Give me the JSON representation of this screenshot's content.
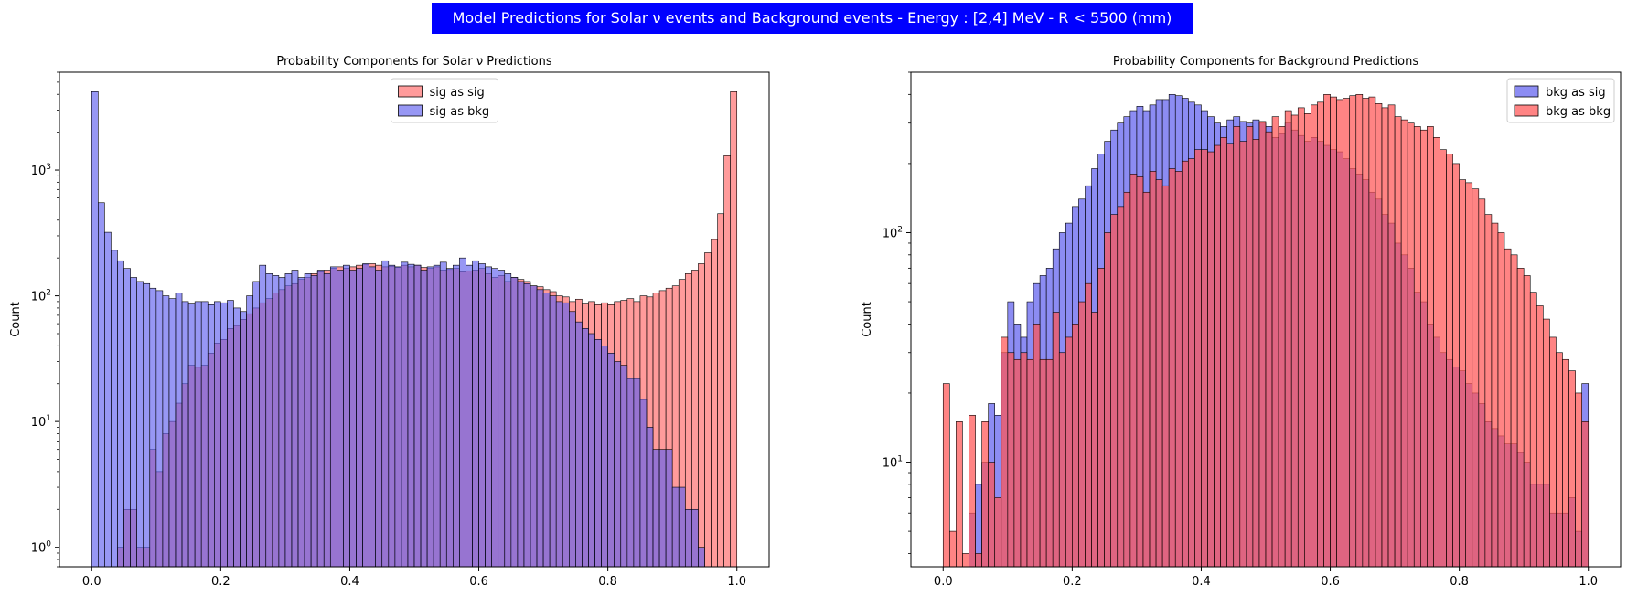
{
  "banner": {
    "title": "Model Predictions for Solar ν events and Background events - Energy : [2,4] MeV - R < 5500 (mm)",
    "background": "#0000ff",
    "color": "#ffffff"
  },
  "chart_data": [
    {
      "type": "histogram",
      "title": "Probability Components for Solar ν Predictions",
      "xlabel": "",
      "ylabel": "Count",
      "yscale": "log",
      "xlim": [
        -0.05,
        1.05
      ],
      "ylim": [
        0.7,
        6000
      ],
      "xticks": [
        "0.0",
        "0.2",
        "0.4",
        "0.6",
        "0.8",
        "1.0"
      ],
      "yticks": [
        {
          "value": 1,
          "label": "10^0"
        },
        {
          "value": 10,
          "label": "10^1"
        },
        {
          "value": 100,
          "label": "10^2"
        },
        {
          "value": 1000,
          "label": "10^3"
        }
      ],
      "legend": "upper center",
      "bin_width": 0.01,
      "bin_start": 0,
      "series": [
        {
          "name": "sig as sig",
          "color": "#ff6666",
          "values": [
            0,
            0,
            0,
            0,
            1,
            2,
            2,
            1,
            1,
            6,
            4,
            8,
            10,
            14,
            20,
            28,
            27,
            28,
            35,
            42,
            45,
            55,
            58,
            65,
            72,
            80,
            88,
            95,
            105,
            112,
            120,
            125,
            135,
            140,
            150,
            155,
            160,
            165,
            170,
            165,
            170,
            175,
            178,
            180,
            175,
            170,
            172,
            168,
            175,
            170,
            175,
            168,
            165,
            170,
            160,
            162,
            165,
            155,
            158,
            160,
            165,
            150,
            140,
            145,
            130,
            140,
            135,
            130,
            120,
            118,
            112,
            108,
            100,
            98,
            90,
            94,
            86,
            90,
            85,
            88,
            85,
            90,
            92,
            95,
            90,
            100,
            98,
            105,
            110,
            115,
            120,
            135,
            150,
            160,
            180,
            220,
            280,
            450,
            1300,
            4200
          ]
        },
        {
          "name": "sig as bkg",
          "color": "#6060ee",
          "values": [
            4200,
            550,
            320,
            230,
            190,
            165,
            140,
            130,
            125,
            115,
            110,
            100,
            95,
            105,
            90,
            86,
            90,
            90,
            85,
            90,
            88,
            92,
            80,
            75,
            100,
            130,
            175,
            150,
            145,
            140,
            150,
            160,
            140,
            150,
            145,
            160,
            150,
            170,
            160,
            175,
            160,
            165,
            180,
            170,
            160,
            190,
            175,
            170,
            185,
            178,
            175,
            160,
            170,
            175,
            185,
            165,
            175,
            200,
            175,
            190,
            180,
            170,
            165,
            160,
            150,
            140,
            130,
            125,
            120,
            112,
            105,
            100,
            90,
            88,
            75,
            62,
            55,
            50,
            45,
            40,
            35,
            30,
            28,
            22,
            22,
            15,
            9,
            6,
            6,
            6,
            3,
            3,
            2,
            2,
            1,
            0,
            0,
            0,
            0,
            0
          ]
        }
      ]
    },
    {
      "type": "histogram",
      "title": "Probability Components for Background Predictions",
      "xlabel": "",
      "ylabel": "Count",
      "yscale": "log",
      "xlim": [
        -0.05,
        1.05
      ],
      "ylim": [
        3.5,
        500
      ],
      "xticks": [
        "0.0",
        "0.2",
        "0.4",
        "0.6",
        "0.8",
        "1.0"
      ],
      "yticks": [
        {
          "value": 10,
          "label": "10^1"
        },
        {
          "value": 100,
          "label": "10^2"
        }
      ],
      "legend": "upper right",
      "bin_width": 0.01,
      "bin_start": 0,
      "series": [
        {
          "name": "bkg as sig",
          "color": "#6060ee",
          "values": [
            0,
            0,
            0,
            0,
            6,
            8,
            10,
            18,
            16,
            30,
            50,
            40,
            35,
            50,
            60,
            65,
            70,
            85,
            100,
            110,
            130,
            140,
            160,
            190,
            220,
            250,
            280,
            300,
            320,
            340,
            355,
            340,
            360,
            380,
            380,
            400,
            395,
            385,
            370,
            360,
            340,
            320,
            300,
            290,
            310,
            320,
            305,
            300,
            310,
            300,
            290,
            260,
            270,
            300,
            280,
            265,
            250,
            260,
            250,
            240,
            230,
            225,
            210,
            190,
            180,
            170,
            150,
            140,
            120,
            110,
            90,
            80,
            70,
            55,
            50,
            40,
            35,
            30,
            28,
            26,
            25,
            22,
            20,
            18,
            15,
            14,
            13,
            12,
            12,
            11,
            10,
            8,
            8,
            8,
            6,
            6,
            6,
            7,
            5,
            22
          ]
        },
        {
          "name": "bkg as bkg",
          "color": "#ff5555",
          "values": [
            22,
            5,
            15,
            4,
            16,
            4,
            15,
            10,
            7,
            35,
            30,
            28,
            30,
            28,
            40,
            28,
            28,
            45,
            30,
            35,
            40,
            50,
            60,
            45,
            70,
            100,
            120,
            130,
            150,
            180,
            175,
            150,
            185,
            170,
            160,
            190,
            185,
            205,
            210,
            230,
            230,
            225,
            240,
            260,
            245,
            290,
            250,
            290,
            255,
            305,
            275,
            320,
            290,
            340,
            325,
            350,
            330,
            360,
            370,
            400,
            390,
            380,
            385,
            395,
            400,
            385,
            390,
            365,
            350,
            360,
            320,
            310,
            300,
            290,
            280,
            290,
            260,
            230,
            220,
            200,
            170,
            165,
            155,
            140,
            120,
            110,
            100,
            85,
            80,
            70,
            65,
            55,
            48,
            42,
            35,
            30,
            28,
            25,
            20,
            15
          ]
        }
      ]
    }
  ]
}
